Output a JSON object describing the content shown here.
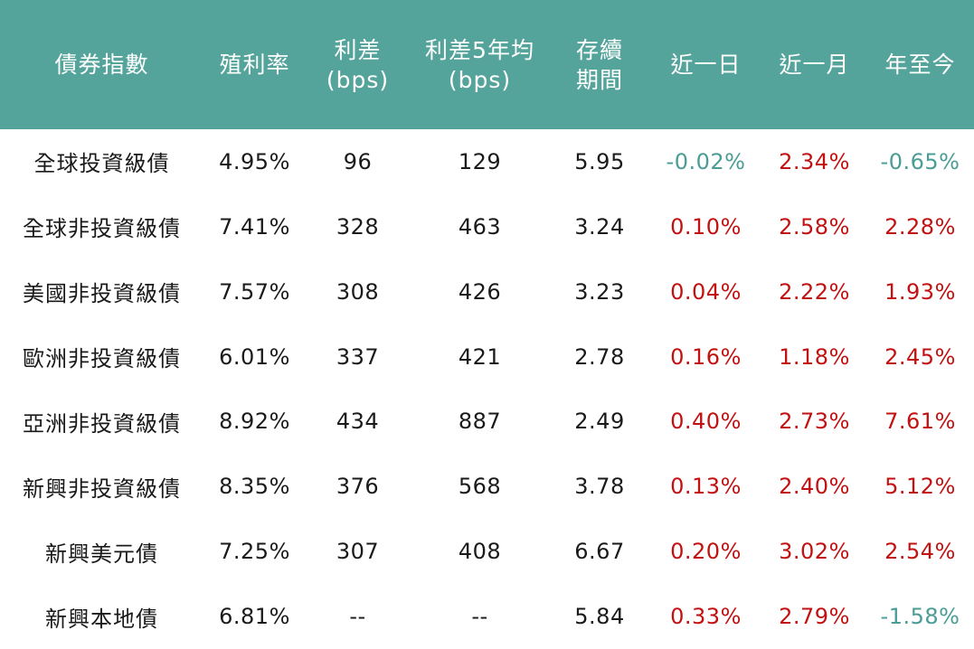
{
  "colors": {
    "header_bg": "#55A49B",
    "header_text": "#FFFFFF",
    "body_text": "#1A1A1A",
    "positive": "#C21111",
    "negative": "#4A9D95",
    "page_bg": "#FFFFFF"
  },
  "chart_data": {
    "type": "table",
    "title": "",
    "legend": "negative values shown in teal, positive values shown in red",
    "columns": [
      "債券指數",
      "殖利率",
      "利差\n(bps)",
      "利差5年均\n(bps)",
      "存續\n期間",
      "近一日",
      "近一月",
      "年至今"
    ],
    "rows": [
      {
        "name": "全球投資級債",
        "yield": "4.95%",
        "spread": "96",
        "spread_5y_avg": "129",
        "duration": "5.95",
        "change_1d": "-0.02%",
        "change_1m": "2.34%",
        "change_ytd": "-0.65%"
      },
      {
        "name": "全球非投資級債",
        "yield": "7.41%",
        "spread": "328",
        "spread_5y_avg": "463",
        "duration": "3.24",
        "change_1d": "0.10%",
        "change_1m": "2.58%",
        "change_ytd": "2.28%"
      },
      {
        "name": "美國非投資級債",
        "yield": "7.57%",
        "spread": "308",
        "spread_5y_avg": "426",
        "duration": "3.23",
        "change_1d": "0.04%",
        "change_1m": "2.22%",
        "change_ytd": "1.93%"
      },
      {
        "name": "歐洲非投資級債",
        "yield": "6.01%",
        "spread": "337",
        "spread_5y_avg": "421",
        "duration": "2.78",
        "change_1d": "0.16%",
        "change_1m": "1.18%",
        "change_ytd": "2.45%"
      },
      {
        "name": "亞洲非投資級債",
        "yield": "8.92%",
        "spread": "434",
        "spread_5y_avg": "887",
        "duration": "2.49",
        "change_1d": "0.40%",
        "change_1m": "2.73%",
        "change_ytd": "7.61%"
      },
      {
        "name": "新興非投資級債",
        "yield": "8.35%",
        "spread": "376",
        "spread_5y_avg": "568",
        "duration": "3.78",
        "change_1d": "0.13%",
        "change_1m": "2.40%",
        "change_ytd": "5.12%"
      },
      {
        "name": "新興美元債",
        "yield": "7.25%",
        "spread": "307",
        "spread_5y_avg": "408",
        "duration": "6.67",
        "change_1d": "0.20%",
        "change_1m": "3.02%",
        "change_ytd": "2.54%"
      },
      {
        "name": "新興本地債",
        "yield": "6.81%",
        "spread": "--",
        "spread_5y_avg": "--",
        "duration": "5.84",
        "change_1d": "0.33%",
        "change_1m": "2.79%",
        "change_ytd": "-1.58%"
      }
    ]
  }
}
